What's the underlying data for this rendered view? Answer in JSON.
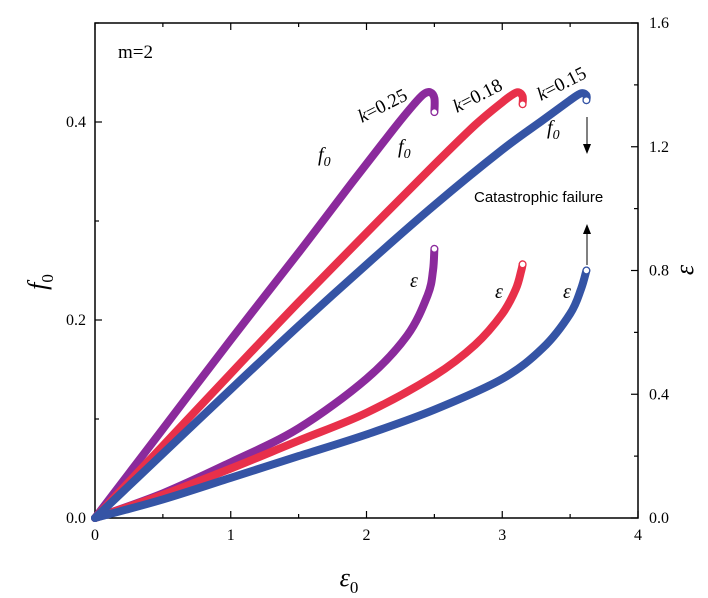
{
  "chart_data": {
    "type": "line",
    "x": {
      "label": "ε",
      "label_sub": "0",
      "lim": [
        0,
        4
      ],
      "ticks": [
        "0",
        "1",
        "2",
        "3",
        "4"
      ]
    },
    "y_left": {
      "label": "f",
      "label_sub": "0",
      "lim": [
        0,
        0.5
      ],
      "ticks": [
        "0.0",
        "0.2",
        "0.4"
      ]
    },
    "y_right": {
      "label": "ε",
      "lim": [
        0,
        1.6
      ],
      "ticks": [
        "0.0",
        "0.4",
        "0.8",
        "1.2",
        "1.6"
      ]
    },
    "annotations": {
      "m": "m=2",
      "catastrophic": "Catastrophic failure",
      "k_prefix": "k",
      "f0_label": "f",
      "f0_sub": "0",
      "eps_label": "ε"
    },
    "series": [
      {
        "k": "=0.25",
        "color": "#8b2a9c",
        "f0": [
          [
            0,
            0
          ],
          [
            0.5,
            0.09
          ],
          [
            1,
            0.18
          ],
          [
            1.5,
            0.268
          ],
          [
            1.9,
            0.34
          ],
          [
            2.2,
            0.393
          ],
          [
            2.35,
            0.418
          ],
          [
            2.42,
            0.428
          ],
          [
            2.47,
            0.43
          ],
          [
            2.5,
            0.424
          ],
          [
            2.5,
            0.41
          ]
        ],
        "eps": [
          [
            0,
            0
          ],
          [
            0.5,
            0.08
          ],
          [
            1,
            0.18
          ],
          [
            1.5,
            0.29
          ],
          [
            2,
            0.45
          ],
          [
            2.3,
            0.59
          ],
          [
            2.45,
            0.72
          ],
          [
            2.49,
            0.8
          ],
          [
            2.5,
            0.87
          ]
        ]
      },
      {
        "k": "=0.18",
        "color": "#e8304a",
        "f0": [
          [
            0,
            0
          ],
          [
            0.5,
            0.073
          ],
          [
            1,
            0.146
          ],
          [
            1.5,
            0.218
          ],
          [
            2,
            0.288
          ],
          [
            2.5,
            0.357
          ],
          [
            2.8,
            0.397
          ],
          [
            3,
            0.42
          ],
          [
            3.08,
            0.428
          ],
          [
            3.12,
            0.43
          ],
          [
            3.15,
            0.426
          ],
          [
            3.15,
            0.418
          ]
        ],
        "eps": [
          [
            0,
            0
          ],
          [
            0.5,
            0.075
          ],
          [
            1,
            0.16
          ],
          [
            1.5,
            0.25
          ],
          [
            2,
            0.34
          ],
          [
            2.5,
            0.46
          ],
          [
            2.8,
            0.56
          ],
          [
            3,
            0.66
          ],
          [
            3.1,
            0.74
          ],
          [
            3.14,
            0.8
          ],
          [
            3.15,
            0.82
          ]
        ]
      },
      {
        "k": "=0.15",
        "color": "#3554a5",
        "f0": [
          [
            0,
            0
          ],
          [
            0.5,
            0.065
          ],
          [
            1,
            0.13
          ],
          [
            1.5,
            0.194
          ],
          [
            2,
            0.256
          ],
          [
            2.5,
            0.316
          ],
          [
            3,
            0.372
          ],
          [
            3.3,
            0.402
          ],
          [
            3.5,
            0.422
          ],
          [
            3.58,
            0.429
          ],
          [
            3.62,
            0.427
          ],
          [
            3.62,
            0.422
          ]
        ],
        "eps": [
          [
            0,
            0
          ],
          [
            0.5,
            0.06
          ],
          [
            1,
            0.13
          ],
          [
            1.5,
            0.2
          ],
          [
            2,
            0.27
          ],
          [
            2.5,
            0.35
          ],
          [
            3,
            0.45
          ],
          [
            3.3,
            0.55
          ],
          [
            3.5,
            0.66
          ],
          [
            3.58,
            0.74
          ],
          [
            3.62,
            0.8
          ]
        ]
      }
    ]
  }
}
